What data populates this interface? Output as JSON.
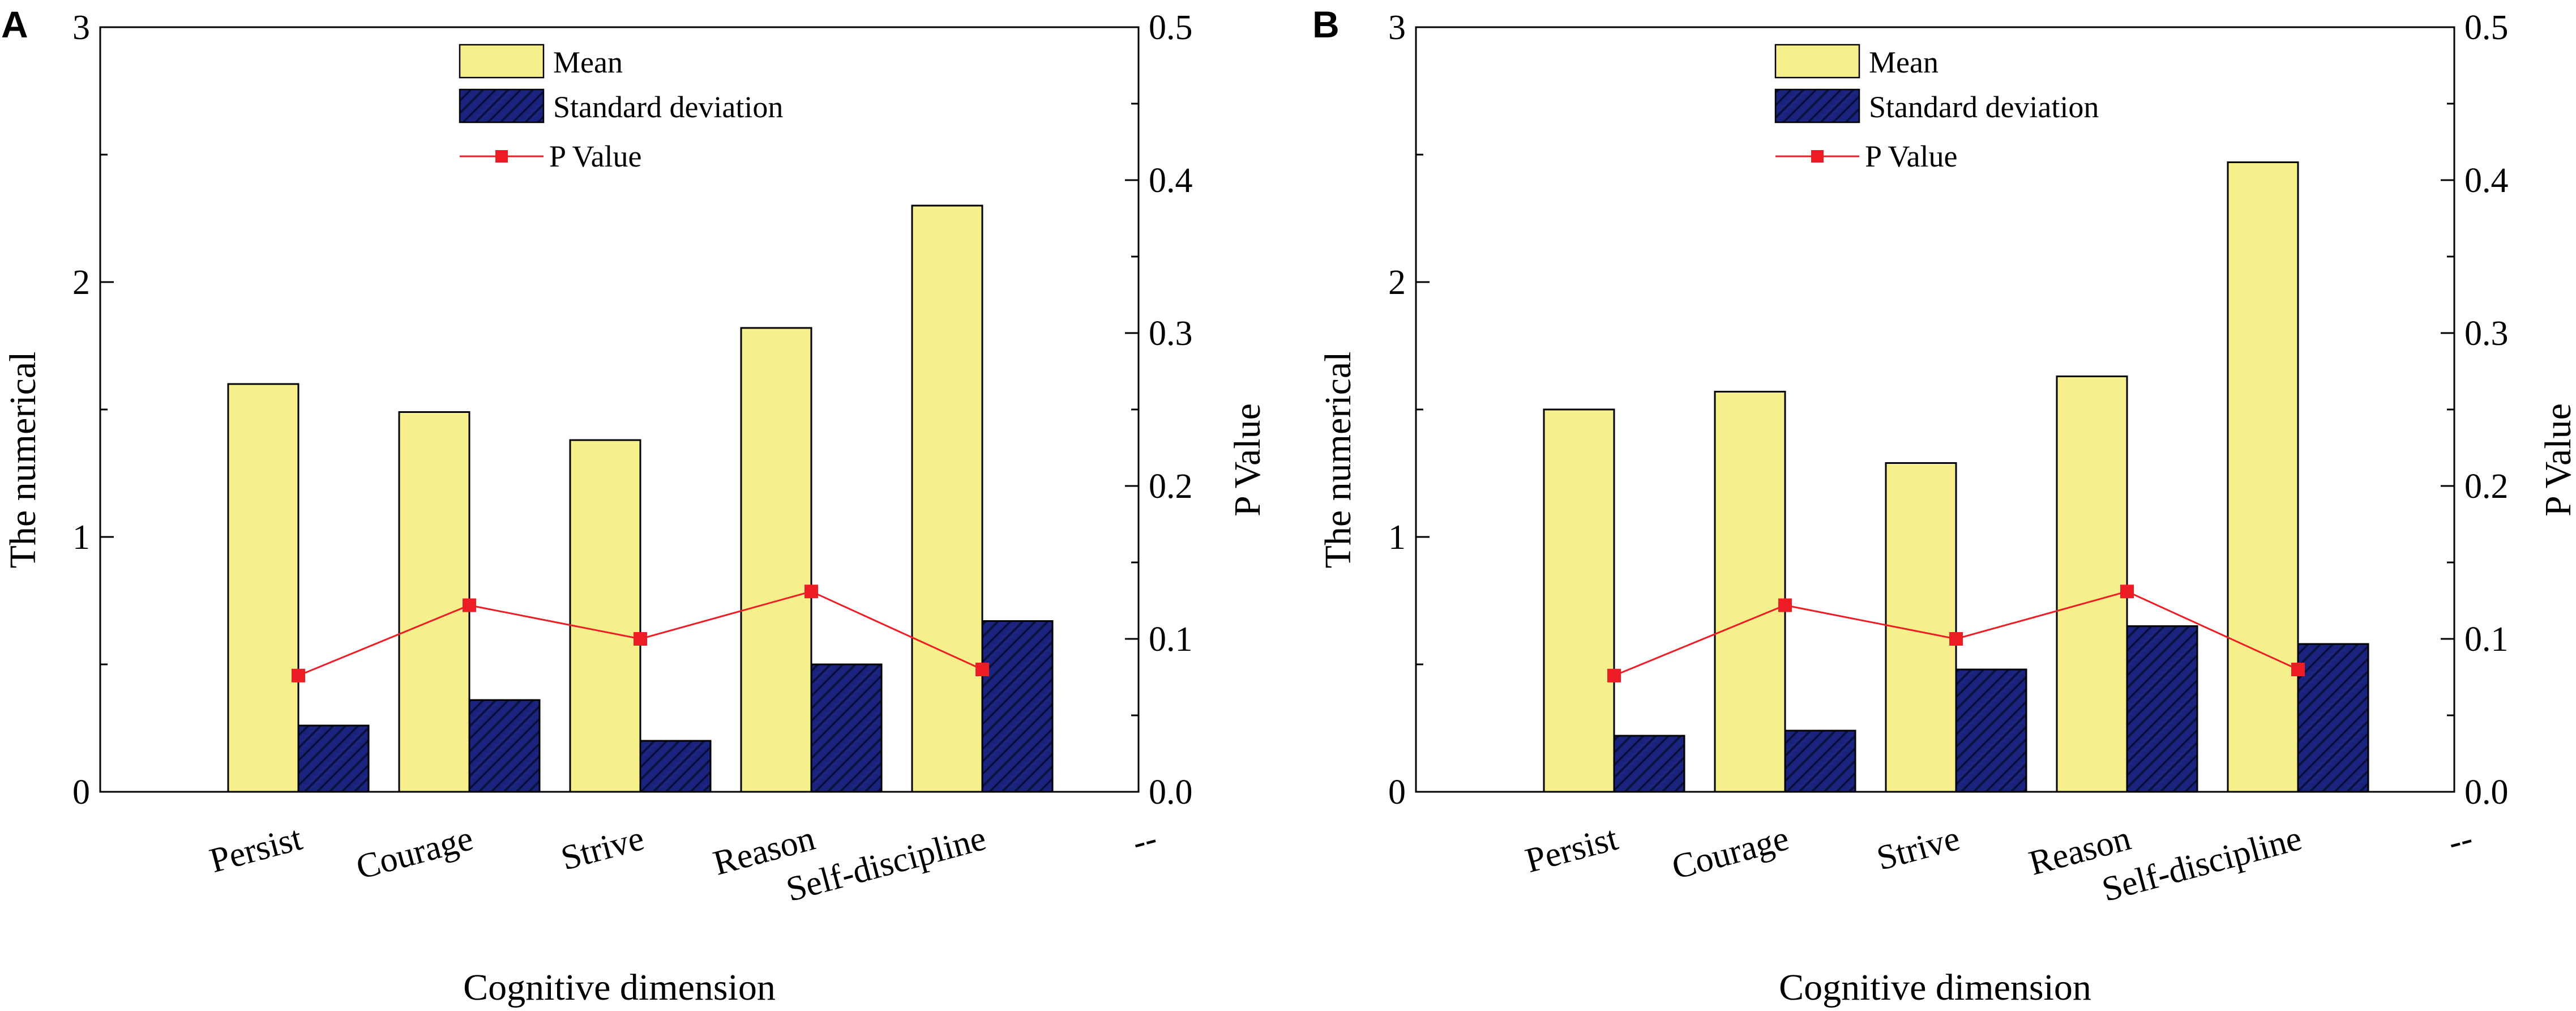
{
  "figure": {
    "colors": {
      "mean_fill": "#f5f08c",
      "sd_fill": "#1a237e",
      "sd_hatch": "#0a0f3a",
      "p_color": "#ee1c25",
      "axis": "#000000"
    }
  },
  "chart_data": [
    {
      "type": "bar",
      "panel_label": "A",
      "categories": [
        "Persist",
        "Courage",
        "Strive",
        "Reason",
        "Self-discipline"
      ],
      "extra_tick_label": "--",
      "series": [
        {
          "name": "Mean",
          "axis": "left",
          "values": [
            1.6,
            1.49,
            1.38,
            1.82,
            2.3
          ]
        },
        {
          "name": "Standard deviation",
          "axis": "left",
          "values": [
            0.26,
            0.36,
            0.2,
            0.5,
            0.67
          ]
        },
        {
          "name": "P Value",
          "axis": "right",
          "kind": "line",
          "values": [
            0.076,
            0.122,
            0.1,
            0.131,
            0.08
          ]
        }
      ],
      "xlabel": "Cognitive dimension",
      "ylabel": "The numerical",
      "y2label": "P Value",
      "ylim": [
        0,
        3
      ],
      "y2lim": [
        0,
        0.5
      ],
      "yticks": [
        "0",
        "1",
        "2",
        "3"
      ],
      "y2ticks": [
        "0.0",
        "0.1",
        "0.2",
        "0.3",
        "0.4",
        "0.5"
      ],
      "legend": [
        "Mean",
        "Standard deviation",
        "P Value"
      ],
      "legend_position": "top-center"
    },
    {
      "type": "bar",
      "panel_label": "B",
      "categories": [
        "Persist",
        "Courage",
        "Strive",
        "Reason",
        "Self-discipline"
      ],
      "extra_tick_label": "--",
      "series": [
        {
          "name": "Mean",
          "axis": "left",
          "values": [
            1.5,
            1.57,
            1.29,
            1.63,
            2.47
          ]
        },
        {
          "name": "Standard deviation",
          "axis": "left",
          "values": [
            0.22,
            0.24,
            0.48,
            0.65,
            0.58
          ]
        },
        {
          "name": "P Value",
          "axis": "right",
          "kind": "line",
          "values": [
            0.076,
            0.122,
            0.1,
            0.131,
            0.08
          ]
        }
      ],
      "xlabel": "Cognitive dimension",
      "ylabel": "The numerical",
      "y2label": "P Value",
      "ylim": [
        0,
        3
      ],
      "y2lim": [
        0,
        0.5
      ],
      "yticks": [
        "0",
        "1",
        "2",
        "3"
      ],
      "y2ticks": [
        "0.0",
        "0.1",
        "0.2",
        "0.3",
        "0.4",
        "0.5"
      ],
      "legend": [
        "Mean",
        "Standard deviation",
        "P Value"
      ],
      "legend_position": "top-center"
    }
  ]
}
